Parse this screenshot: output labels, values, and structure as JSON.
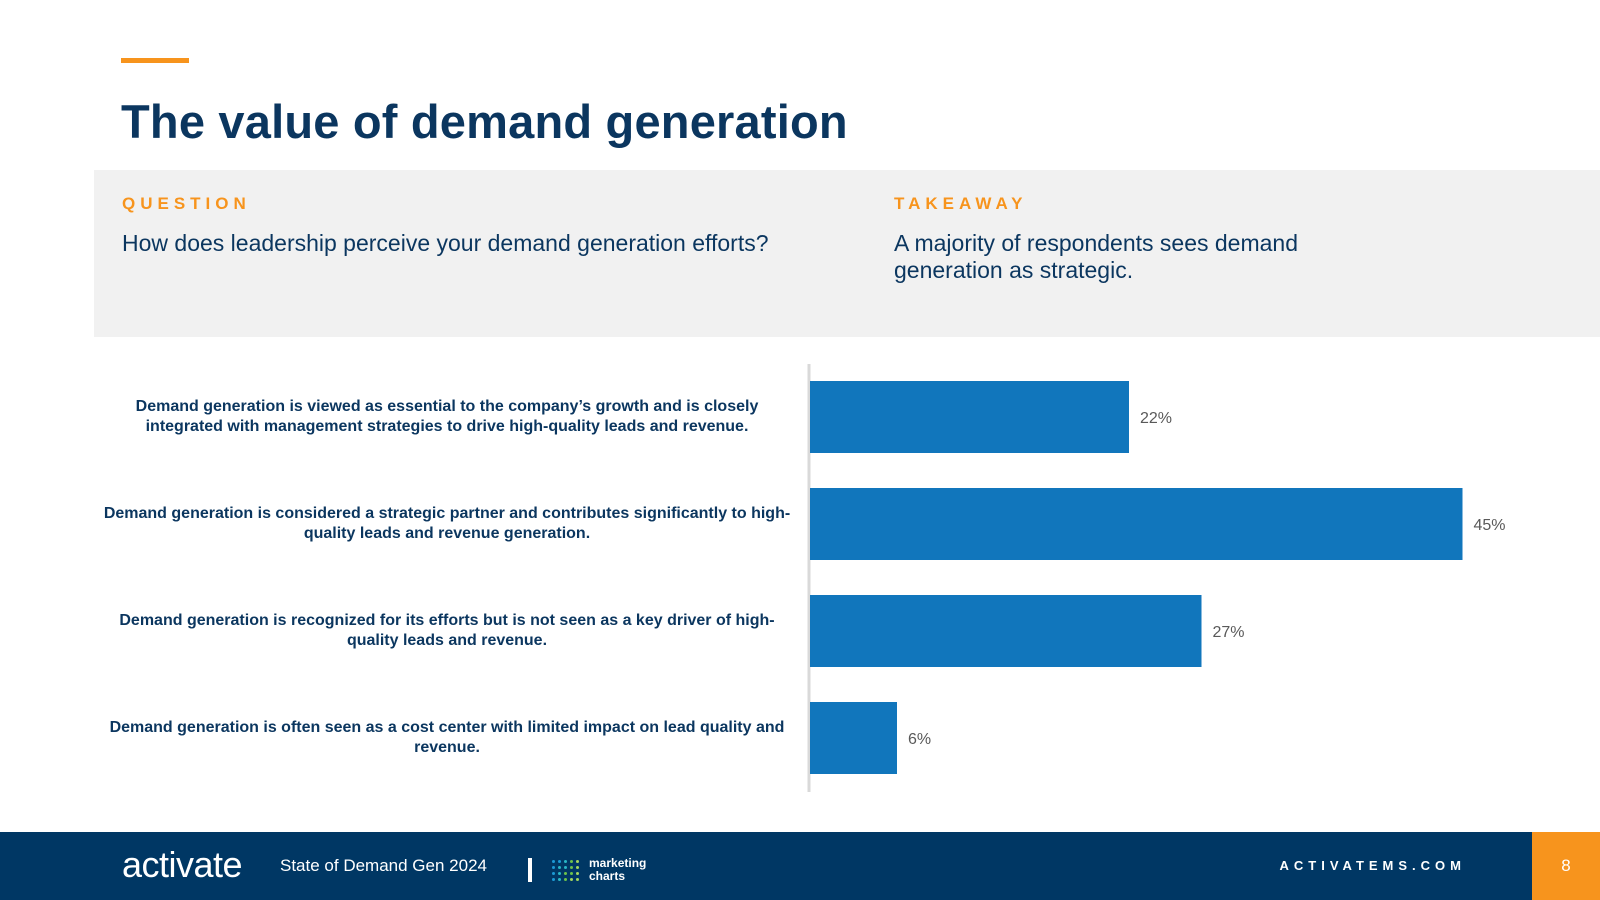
{
  "page": {
    "title": "The value of demand generation",
    "number": "8"
  },
  "question": {
    "heading": "QUESTION",
    "text": "How does leadership perceive your demand generation efforts?"
  },
  "takeaway": {
    "heading": "TAKEAWAY",
    "text": "A majority of respondents sees demand generation as strategic."
  },
  "colors": {
    "bar": "#1176bc",
    "axis": "#d9d9d9",
    "value_label": "#595959",
    "accent": "#f7941d",
    "navy": "#0b365f"
  },
  "chart_data": {
    "type": "bar",
    "orientation": "horizontal",
    "title": "",
    "xlabel": "",
    "ylabel": "",
    "xlim": [
      0,
      50
    ],
    "grid": false,
    "categories": [
      "Demand generation is viewed as essential to the company’s growth and is closely integrated with management strategies to drive high-quality leads and revenue.",
      "Demand generation is considered a strategic partner and contributes significantly to high-quality leads and revenue generation.",
      "Demand generation is recognized for its efforts but is not seen as a key driver of high-quality leads and revenue.",
      "Demand generation is often seen as a cost center with limited impact on lead quality and revenue."
    ],
    "values": [
      22,
      45,
      27,
      6
    ],
    "value_labels": [
      "22%",
      "45%",
      "27%",
      "6%"
    ]
  },
  "footer": {
    "brand": "activate",
    "report": "State of Demand Gen 2024",
    "partner": "marketing charts",
    "partner_line1": "marketing",
    "partner_line2": "charts",
    "url": "ACTIVATEMS.COM"
  }
}
